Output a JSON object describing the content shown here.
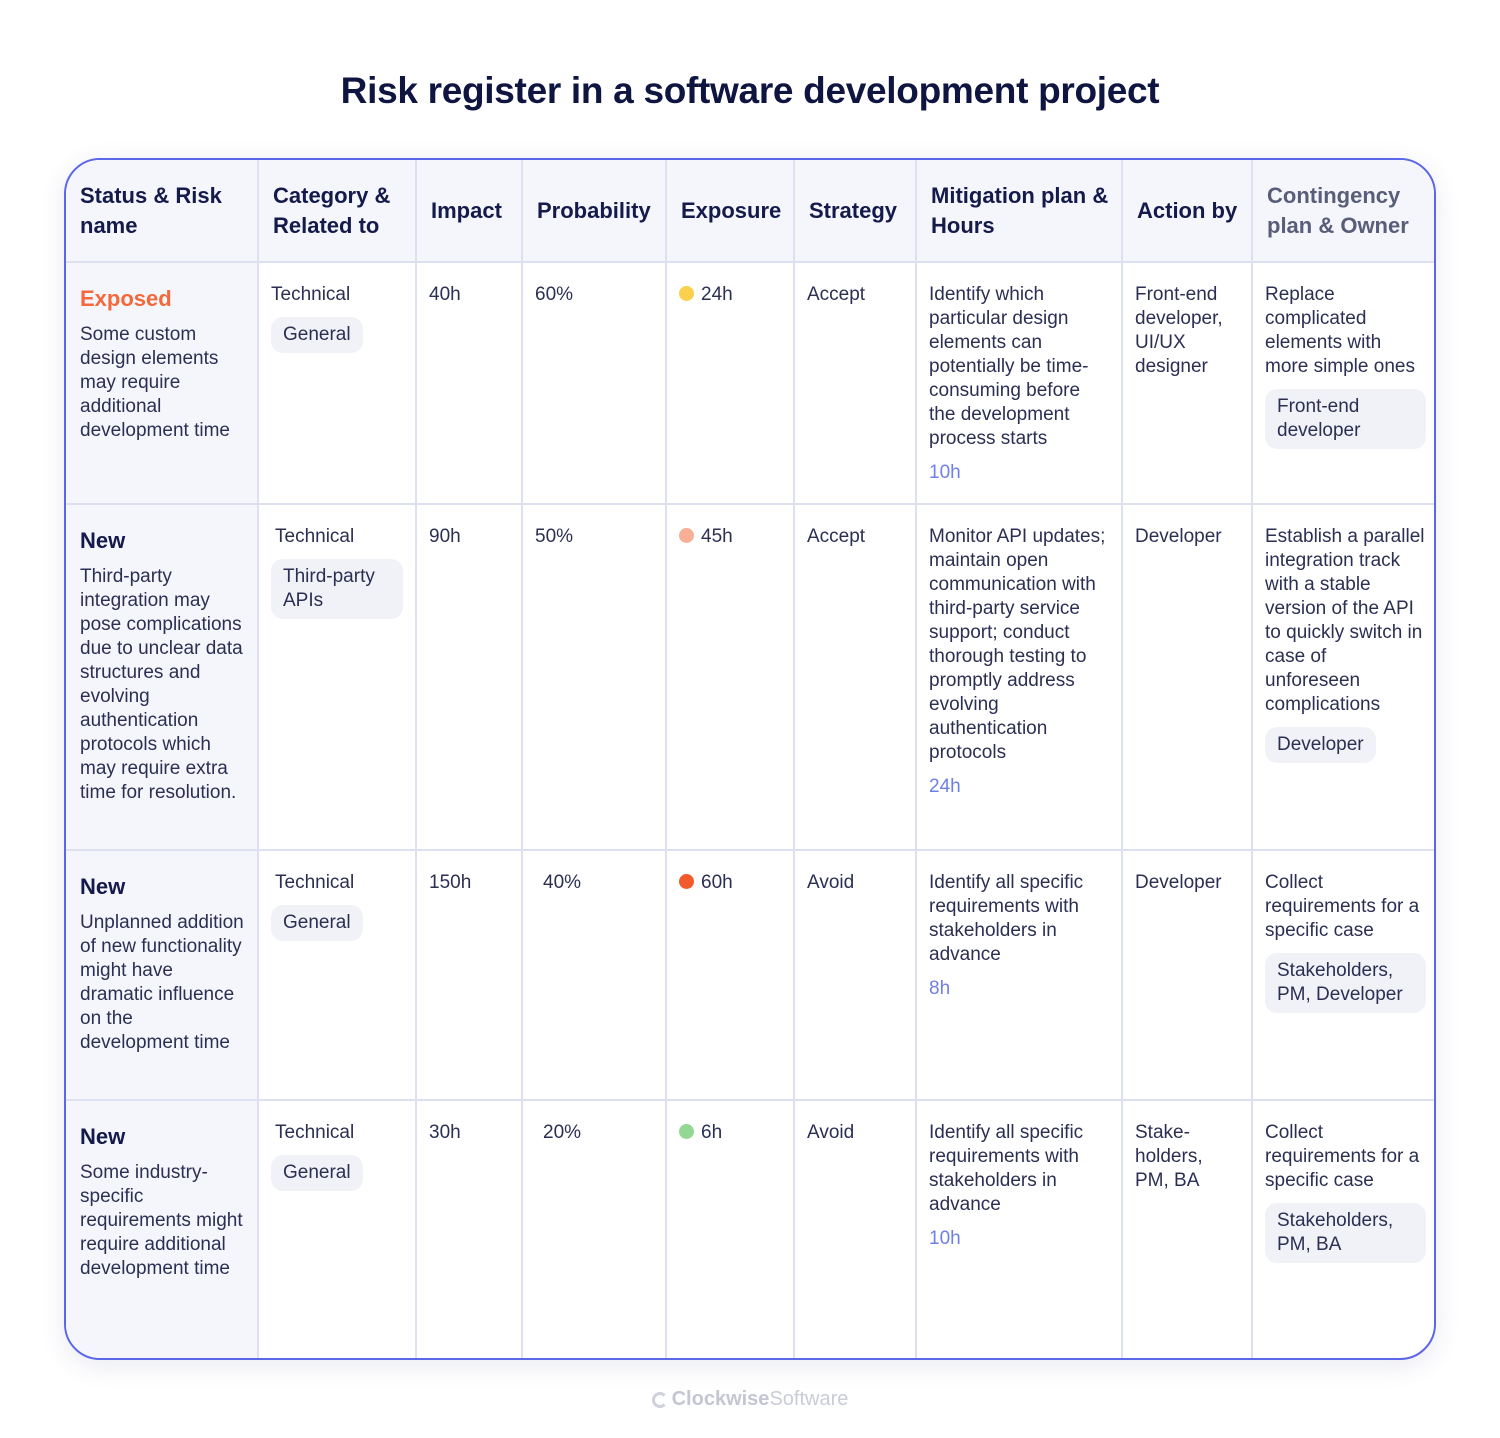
{
  "title": "Risk register in a software development project",
  "headers": {
    "status": "Status & Risk name",
    "category": "Category & Related to",
    "impact": "Impact",
    "probability": "Probability",
    "exposure": "Exposure",
    "strategy": "Strategy",
    "mitigation": "Mitigation plan & Hours",
    "action": "Action by",
    "contingency": "Contingency plan & Owner"
  },
  "colors": {
    "accent_border": "#5b66e8",
    "exposed_status": "#f3693c",
    "hours_text": "#6f7fe8"
  },
  "rows": [
    {
      "status": "Exposed",
      "risk": "Some custom design elements may require additional development time",
      "category": "Technical",
      "related": "General",
      "impact": "40h",
      "probability": "60%",
      "exposure": "24h",
      "exposure_color": "#fbd04d",
      "strategy": "Accept",
      "mitigation": "Identify which particular design elements can potentially be time-consuming before the development process starts",
      "hours": "10h",
      "action": "Front-end developer, UI/UX designer",
      "contingency": "Replace complicated elements with more simple ones",
      "owner": "Front-end developer"
    },
    {
      "status": "New",
      "risk": "Third-party integration may pose complications due to unclear data structures and evolving authentication protocols which may require extra time for resolution.",
      "category": "Technical",
      "related": "Third-party APIs",
      "impact": "90h",
      "probability": "50%",
      "exposure": "45h",
      "exposure_color": "#f9ae96",
      "strategy": "Accept",
      "mitigation": "Monitor API updates; maintain open communication with third-party service support; conduct thorough testing to promptly address evolving authentication protocols",
      "hours": "24h",
      "action": "Developer",
      "contingency": "Establish a parallel integration track with a stable version of the API to quickly switch in case of unforeseen complications",
      "owner": "Developer"
    },
    {
      "status": "New",
      "risk": "Unplanned addition of new functionality might have dramatic influence on the development time",
      "category": "Technical",
      "related": "General",
      "impact": "150h",
      "probability": "40%",
      "exposure": "60h",
      "exposure_color": "#f25a2c",
      "strategy": "Avoid",
      "mitigation": "Identify all specific requirements with stakeholders in advance",
      "hours": "8h",
      "action": "Developer",
      "contingency": "Collect requirements for a specific case",
      "owner": "Stakeholders, PM, Developer"
    },
    {
      "status": "New",
      "risk": "Some industry-specific requirements might require additional development time",
      "category": "Technical",
      "related": "General",
      "impact": "30h",
      "probability": "20%",
      "exposure": "6h",
      "exposure_color": "#92d892",
      "strategy": "Avoid",
      "mitigation": "Identify all specific requirements with stakeholders in advance",
      "hours": "10h",
      "action": "Stake-holders, PM, BA",
      "contingency": "Collect requirements for a specific case",
      "owner": "Stakeholders, PM, BA"
    }
  ],
  "footer": {
    "brand_bold": "Clockwise",
    "brand_light": "Software"
  }
}
